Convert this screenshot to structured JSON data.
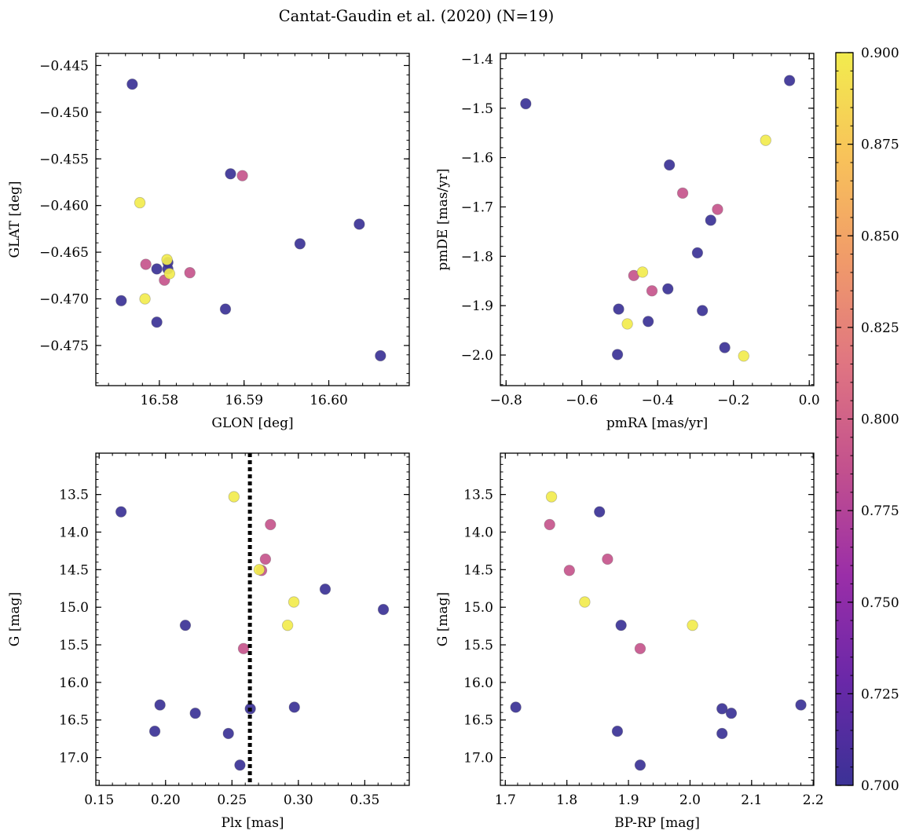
{
  "title": "Cantat-Gaudin et al. (2020) (N=19)",
  "colors": {
    "dot_low": "#3b3296",
    "dot_mid": "#d2648c",
    "dot_high": "#eef04a",
    "axis": "#000000",
    "vline": "#000000",
    "colormap": [
      "#3b3296",
      "#6a28a8",
      "#9a2ea8",
      "#c2508e",
      "#df7482",
      "#f09a6a",
      "#f8c25a",
      "#f2ec4e"
    ]
  },
  "colorbar": {
    "min": 0.7,
    "max": 0.9,
    "tick_values": [
      0.7,
      0.725,
      0.75,
      0.775,
      0.8,
      0.825,
      0.85,
      0.875,
      0.9
    ],
    "tick_labels": [
      "0.700",
      "0.725",
      "0.750",
      "0.775",
      "0.800",
      "0.825",
      "0.850",
      "0.875",
      "0.900"
    ]
  },
  "chart_data": [
    {
      "type": "scatter",
      "id": "glon-glat",
      "xlabel": "GLON [deg]",
      "ylabel": "GLAT [deg]",
      "xlim": [
        16.5725,
        16.6095
      ],
      "ylim": [
        -0.4793,
        -0.4437
      ],
      "y_inverted": false,
      "x_ticks": [
        16.58,
        16.59,
        16.6
      ],
      "x_tick_labels": [
        "16.58",
        "16.59",
        "16.60"
      ],
      "x_minor_step": 0.002,
      "y_ticks": [
        -0.445,
        -0.45,
        -0.455,
        -0.46,
        -0.465,
        -0.47,
        -0.475
      ],
      "y_tick_labels": [
        "−0.445",
        "−0.450",
        "−0.455",
        "−0.460",
        "−0.465",
        "−0.470",
        "−0.475"
      ],
      "y_minor_step": 0.001,
      "points": [
        {
          "x": 16.5768,
          "y": -0.447,
          "c": 0.7
        },
        {
          "x": 16.5755,
          "y": -0.4702,
          "c": 0.7
        },
        {
          "x": 16.5777,
          "y": -0.4597,
          "c": 0.9
        },
        {
          "x": 16.5783,
          "y": -0.47,
          "c": 0.9
        },
        {
          "x": 16.5784,
          "y": -0.4663,
          "c": 0.79
        },
        {
          "x": 16.5797,
          "y": -0.4668,
          "c": 0.7
        },
        {
          "x": 16.5797,
          "y": -0.4725,
          "c": 0.7
        },
        {
          "x": 16.5806,
          "y": -0.468,
          "c": 0.79
        },
        {
          "x": 16.581,
          "y": -0.4661,
          "c": 0.7
        },
        {
          "x": 16.581,
          "y": -0.4668,
          "c": 0.7
        },
        {
          "x": 16.5809,
          "y": -0.4658,
          "c": 0.9
        },
        {
          "x": 16.5812,
          "y": -0.4673,
          "c": 0.9
        },
        {
          "x": 16.5836,
          "y": -0.4672,
          "c": 0.79
        },
        {
          "x": 16.5878,
          "y": -0.4711,
          "c": 0.7
        },
        {
          "x": 16.5884,
          "y": -0.4566,
          "c": 0.7
        },
        {
          "x": 16.5898,
          "y": -0.4568,
          "c": 0.79
        },
        {
          "x": 16.5966,
          "y": -0.4641,
          "c": 0.7
        },
        {
          "x": 16.6036,
          "y": -0.462,
          "c": 0.7
        },
        {
          "x": 16.6061,
          "y": -0.4761,
          "c": 0.7
        }
      ]
    },
    {
      "type": "scatter",
      "id": "pmra-pmde",
      "xlabel": "pmRA [mas/yr]",
      "ylabel": "pmDE [mas/yr]",
      "xlim": [
        -0.815,
        0.012
      ],
      "ylim": [
        -2.062,
        -1.389
      ],
      "y_inverted": false,
      "x_ticks": [
        -0.8,
        -0.6,
        -0.4,
        -0.2,
        0.0
      ],
      "x_tick_labels": [
        "−0.8",
        "−0.6",
        "−0.4",
        "−0.2",
        "0.0"
      ],
      "x_minor_step": 0.05,
      "y_ticks": [
        -1.4,
        -1.5,
        -1.6,
        -1.7,
        -1.8,
        -1.9,
        -2.0
      ],
      "y_tick_labels": [
        "−1.4",
        "−1.5",
        "−1.6",
        "−1.7",
        "−1.8",
        "−1.9",
        "−2.0"
      ],
      "y_minor_step": 0.02,
      "points": [
        {
          "x": -0.748,
          "y": -1.491,
          "c": 0.7
        },
        {
          "x": -0.052,
          "y": -1.444,
          "c": 0.7
        },
        {
          "x": -0.115,
          "y": -1.565,
          "c": 0.9
        },
        {
          "x": -0.369,
          "y": -1.615,
          "c": 0.7
        },
        {
          "x": -0.334,
          "y": -1.672,
          "c": 0.79
        },
        {
          "x": -0.242,
          "y": -1.705,
          "c": 0.79
        },
        {
          "x": -0.26,
          "y": -1.727,
          "c": 0.7
        },
        {
          "x": -0.295,
          "y": -1.793,
          "c": 0.7
        },
        {
          "x": -0.463,
          "y": -1.839,
          "c": 0.79
        },
        {
          "x": -0.44,
          "y": -1.832,
          "c": 0.9
        },
        {
          "x": -0.373,
          "y": -1.866,
          "c": 0.7
        },
        {
          "x": -0.415,
          "y": -1.87,
          "c": 0.79
        },
        {
          "x": -0.503,
          "y": -1.907,
          "c": 0.7
        },
        {
          "x": -0.282,
          "y": -1.91,
          "c": 0.7
        },
        {
          "x": -0.48,
          "y": -1.937,
          "c": 0.9
        },
        {
          "x": -0.425,
          "y": -1.932,
          "c": 0.7
        },
        {
          "x": -0.223,
          "y": -1.985,
          "c": 0.7
        },
        {
          "x": -0.506,
          "y": -1.999,
          "c": 0.7
        },
        {
          "x": -0.173,
          "y": -2.002,
          "c": 0.9
        }
      ]
    },
    {
      "type": "scatter",
      "id": "plx-g",
      "xlabel": "Plx [mas]",
      "ylabel": "G [mag]",
      "xlim": [
        0.1475,
        0.3835
      ],
      "ylim": [
        12.95,
        17.37
      ],
      "y_inverted": true,
      "x_ticks": [
        0.15,
        0.2,
        0.25,
        0.3,
        0.35
      ],
      "x_tick_labels": [
        "0.15",
        "0.20",
        "0.25",
        "0.30",
        "0.35"
      ],
      "x_minor_step": 0.01,
      "y_ticks": [
        13.5,
        14.0,
        14.5,
        15.0,
        15.5,
        16.0,
        16.5,
        17.0
      ],
      "y_tick_labels": [
        "13.5",
        "14.0",
        "14.5",
        "15.0",
        "15.5",
        "16.0",
        "16.5",
        "17.0"
      ],
      "y_minor_step": 0.1,
      "vline": {
        "x": 0.2635
      },
      "points": [
        {
          "x": 0.1665,
          "y": 13.73,
          "c": 0.7
        },
        {
          "x": 0.2515,
          "y": 13.53,
          "c": 0.9
        },
        {
          "x": 0.279,
          "y": 13.9,
          "c": 0.79
        },
        {
          "x": 0.2752,
          "y": 14.36,
          "c": 0.79
        },
        {
          "x": 0.2723,
          "y": 14.51,
          "c": 0.79
        },
        {
          "x": 0.2705,
          "y": 14.5,
          "c": 0.9
        },
        {
          "x": 0.3202,
          "y": 14.76,
          "c": 0.7
        },
        {
          "x": 0.2966,
          "y": 14.93,
          "c": 0.9
        },
        {
          "x": 0.364,
          "y": 15.03,
          "c": 0.7
        },
        {
          "x": 0.2149,
          "y": 15.24,
          "c": 0.7
        },
        {
          "x": 0.2919,
          "y": 15.24,
          "c": 0.9
        },
        {
          "x": 0.2587,
          "y": 15.55,
          "c": 0.79
        },
        {
          "x": 0.1958,
          "y": 16.3,
          "c": 0.7
        },
        {
          "x": 0.297,
          "y": 16.33,
          "c": 0.7
        },
        {
          "x": 0.2638,
          "y": 16.35,
          "c": 0.7
        },
        {
          "x": 0.2224,
          "y": 16.41,
          "c": 0.7
        },
        {
          "x": 0.1919,
          "y": 16.65,
          "c": 0.7
        },
        {
          "x": 0.2473,
          "y": 16.68,
          "c": 0.7
        },
        {
          "x": 0.256,
          "y": 17.1,
          "c": 0.7
        }
      ]
    },
    {
      "type": "scatter",
      "id": "bprp-g",
      "xlabel": "BP-RP [mag]",
      "ylabel": "G [mag]",
      "xlim": [
        1.692,
        2.201
      ],
      "ylim": [
        12.95,
        17.37
      ],
      "y_inverted": true,
      "x_ticks": [
        1.7,
        1.8,
        1.9,
        2.0,
        2.1,
        2.2
      ],
      "x_tick_labels": [
        "1.7",
        "1.8",
        "1.9",
        "2.0",
        "2.1",
        "2.2"
      ],
      "x_minor_step": 0.02,
      "y_ticks": [
        13.5,
        14.0,
        14.5,
        15.0,
        15.5,
        16.0,
        16.5,
        17.0
      ],
      "y_tick_labels": [
        "13.5",
        "14.0",
        "14.5",
        "15.0",
        "15.5",
        "16.0",
        "16.5",
        "17.0"
      ],
      "y_minor_step": 0.1,
      "points": [
        {
          "x": 1.775,
          "y": 13.53,
          "c": 0.9
        },
        {
          "x": 1.853,
          "y": 13.73,
          "c": 0.7
        },
        {
          "x": 1.772,
          "y": 13.9,
          "c": 0.79
        },
        {
          "x": 1.866,
          "y": 14.36,
          "c": 0.79
        },
        {
          "x": 1.804,
          "y": 14.51,
          "c": 0.79
        },
        {
          "x": 1.829,
          "y": 14.93,
          "c": 0.9
        },
        {
          "x": 1.888,
          "y": 15.24,
          "c": 0.7
        },
        {
          "x": 2.004,
          "y": 15.24,
          "c": 0.9
        },
        {
          "x": 1.919,
          "y": 15.55,
          "c": 0.79
        },
        {
          "x": 1.717,
          "y": 16.33,
          "c": 0.7
        },
        {
          "x": 2.052,
          "y": 16.35,
          "c": 0.7
        },
        {
          "x": 2.067,
          "y": 16.41,
          "c": 0.7
        },
        {
          "x": 2.18,
          "y": 16.3,
          "c": 0.7
        },
        {
          "x": 1.882,
          "y": 16.65,
          "c": 0.7
        },
        {
          "x": 2.052,
          "y": 16.68,
          "c": 0.7
        },
        {
          "x": 1.919,
          "y": 17.1,
          "c": 0.7
        }
      ]
    }
  ]
}
